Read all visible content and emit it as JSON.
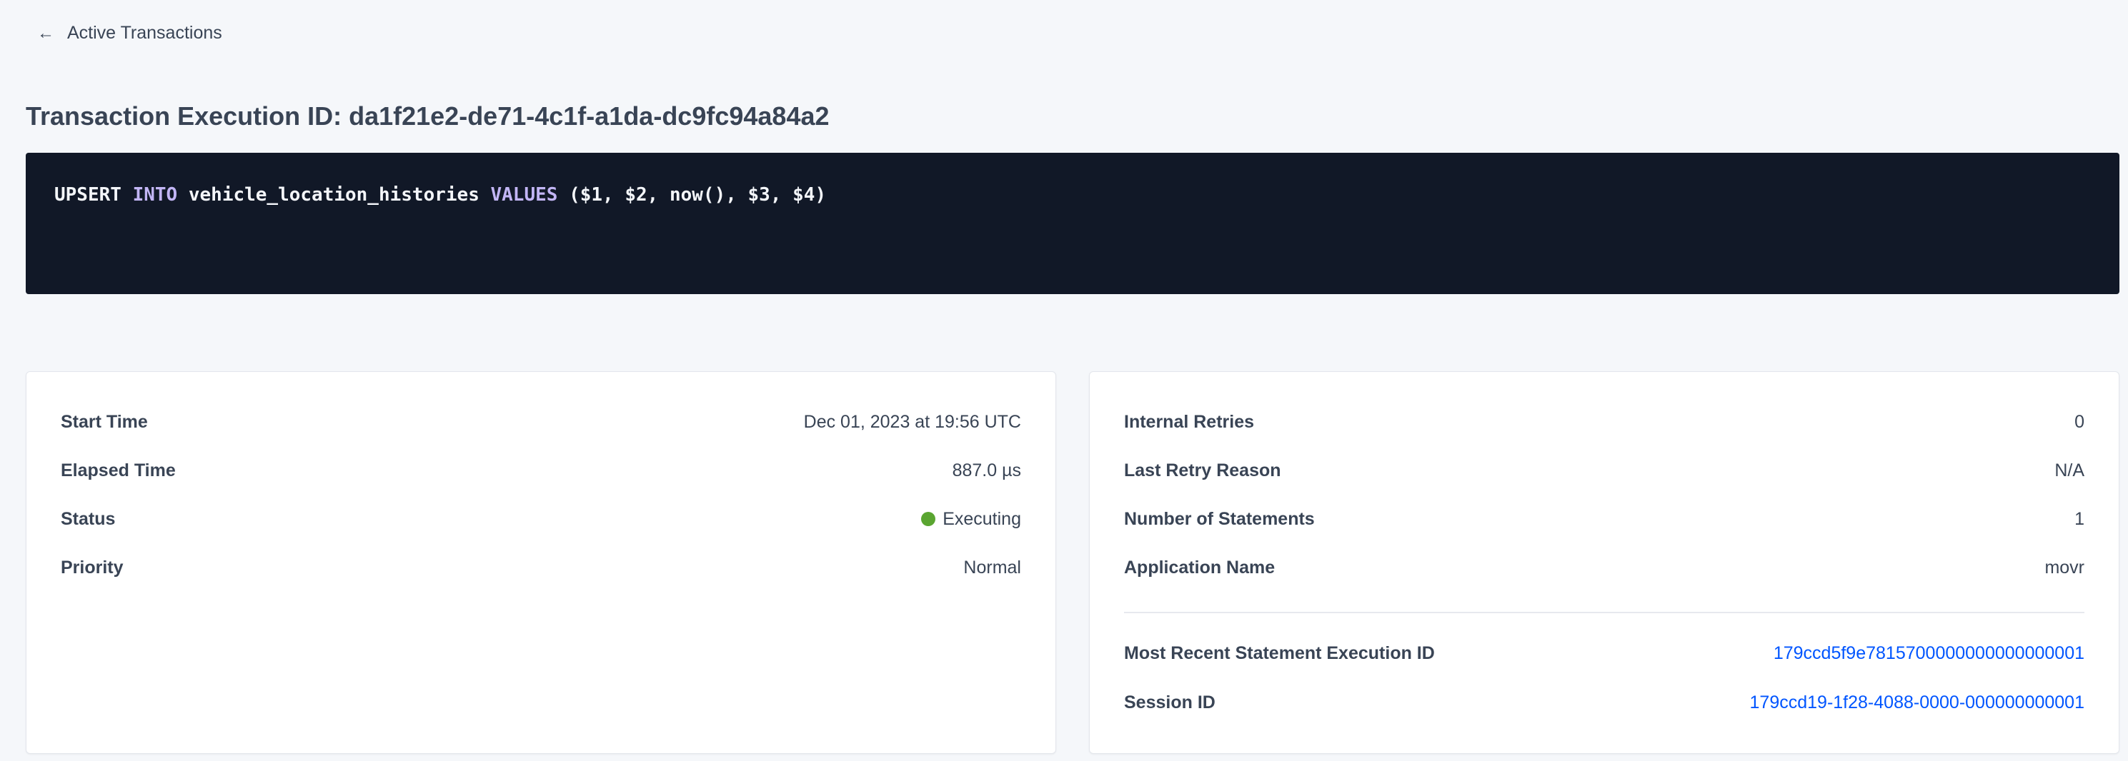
{
  "nav": {
    "back_label": "Active Transactions",
    "back_icon": "arrow-left-icon"
  },
  "header": {
    "title": "Transaction Execution ID: da1f21e2-de71-4c1f-a1da-dc9fc94a84a2"
  },
  "sql": {
    "tokens": [
      {
        "text": "UPSERT ",
        "keyword": false
      },
      {
        "text": "INTO",
        "keyword": true
      },
      {
        "text": " vehicle_location_histories ",
        "keyword": false
      },
      {
        "text": "VALUES",
        "keyword": true
      },
      {
        "text": " ($1, $2, now(), $3, $4)",
        "keyword": false
      }
    ]
  },
  "left_card": {
    "rows": [
      {
        "label": "Start Time",
        "value": "Dec 01, 2023 at 19:56 UTC"
      },
      {
        "label": "Elapsed Time",
        "value": "887.0 µs"
      },
      {
        "label": "Status",
        "value": "Executing",
        "status_color": "#5aa531"
      },
      {
        "label": "Priority",
        "value": "Normal"
      }
    ]
  },
  "right_card": {
    "rows": [
      {
        "label": "Internal Retries",
        "value": "0"
      },
      {
        "label": "Last Retry Reason",
        "value": "N/A"
      },
      {
        "label": "Number of Statements",
        "value": "1"
      },
      {
        "label": "Application Name",
        "value": "movr"
      }
    ],
    "links": [
      {
        "label": "Most Recent Statement Execution ID",
        "value": "179ccd5f9e7815700000000000000001"
      },
      {
        "label": "Session ID",
        "value": "179ccd19-1f28-4088-0000-000000000001"
      }
    ]
  },
  "colors": {
    "link": "#0055ff",
    "code_bg": "#111827",
    "keyword": "#c2b5f5"
  }
}
